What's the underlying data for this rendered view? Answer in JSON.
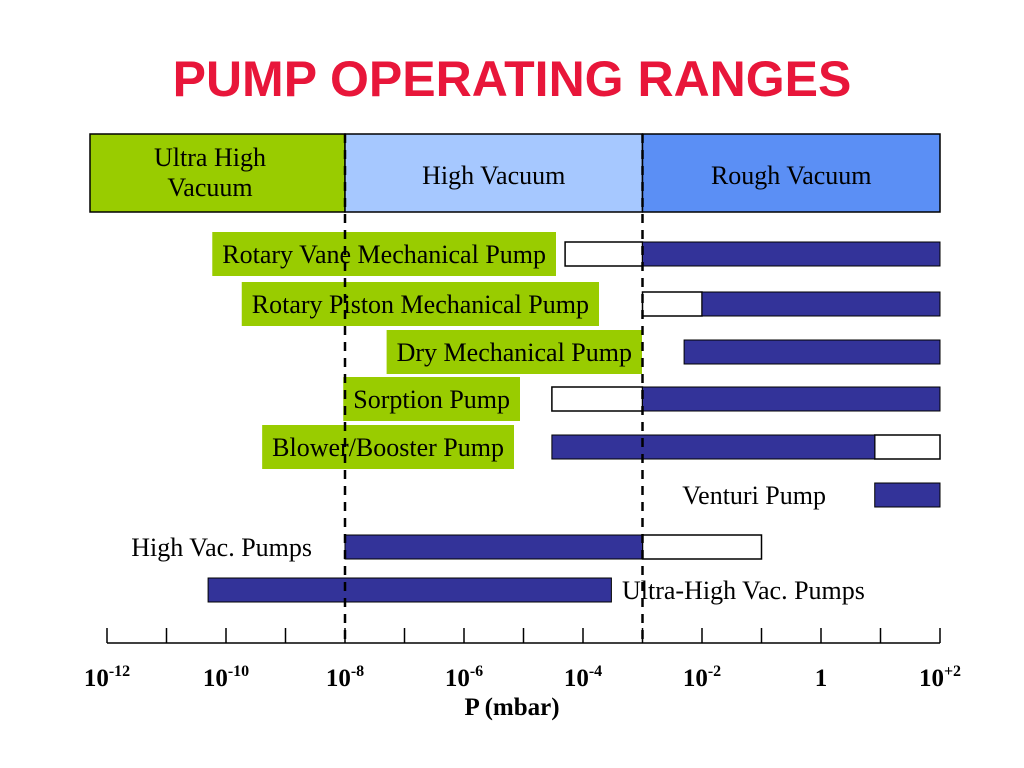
{
  "title": "PUMP OPERATING RANGES",
  "colors": {
    "title": "#e8163a",
    "ultra_high_region": "#99cc00",
    "high_region": "#a6c8ff",
    "rough_region": "#5b8ff5",
    "bar_fill": "#333399",
    "extended_fill": "#ffffff",
    "label_box": "#99cc00"
  },
  "chart_data": {
    "type": "bar",
    "orientation": "horizontal-range",
    "xscale": "log",
    "xlabel": "P (mbar)",
    "xlim": [
      1e-12,
      100.0
    ],
    "x_ticks": [
      {
        "base": "10",
        "exp": "-12"
      },
      {
        "base": "10",
        "exp": "-10"
      },
      {
        "base": "10",
        "exp": "-8"
      },
      {
        "base": "10",
        "exp": "-6"
      },
      {
        "base": "10",
        "exp": "-4"
      },
      {
        "base": "10",
        "exp": "-2"
      },
      {
        "base": "1",
        "exp": ""
      },
      {
        "base": "10",
        "exp": "+2"
      }
    ],
    "regions": [
      {
        "name": "Ultra High\nVacuum",
        "from": 1e-12,
        "to": 1e-08,
        "color": "#99cc00"
      },
      {
        "name": "High Vacuum",
        "from": 1e-08,
        "to": 0.001,
        "color": "#a6c8ff"
      },
      {
        "name": "Rough Vacuum",
        "from": 0.001,
        "to": 100,
        "color": "#5b8ff5"
      }
    ],
    "boundaries": [
      1e-08,
      0.001
    ],
    "pumps": [
      {
        "label": "Rotary Vane Mechanical Pump",
        "boxed": true,
        "label_side": "left",
        "label_end": 550,
        "solid": [
          0.001,
          100
        ],
        "extended": [
          [
            5e-05,
            0.001
          ]
        ]
      },
      {
        "label": "Rotary Piston Mechanical Pump",
        "boxed": true,
        "label_side": "left",
        "label_end": 593,
        "solid": [
          0.01,
          100
        ],
        "extended": [
          [
            0.001,
            0.01
          ]
        ]
      },
      {
        "label": "Dry Mechanical Pump",
        "boxed": true,
        "label_side": "left",
        "label_end": 636,
        "solid": [
          0.005,
          100
        ],
        "extended": []
      },
      {
        "label": "Sorption Pump",
        "boxed": true,
        "label_side": "left",
        "label_end": 514,
        "solid": [
          0.001,
          100
        ],
        "extended": [
          [
            3e-05,
            0.001
          ]
        ]
      },
      {
        "label": "Blower/Booster Pump",
        "boxed": true,
        "label_side": "left",
        "label_end": 508,
        "solid": [
          3e-05,
          8
        ],
        "extended": [
          [
            8,
            100
          ]
        ]
      },
      {
        "label": "Venturi Pump",
        "boxed": false,
        "label_side": "left",
        "label_end": 826,
        "solid": [
          8,
          100
        ],
        "extended": []
      },
      {
        "label": "High Vac. Pumps",
        "boxed": false,
        "label_side": "left",
        "label_end": 312,
        "solid": [
          1e-08,
          0.001
        ],
        "extended": [
          [
            0.001,
            0.1
          ]
        ]
      },
      {
        "label": "Ultra-High Vac. Pumps",
        "boxed": false,
        "label_side": "right",
        "label_end": 622,
        "solid": [
          5e-11,
          0.0003
        ],
        "extended": []
      }
    ]
  }
}
